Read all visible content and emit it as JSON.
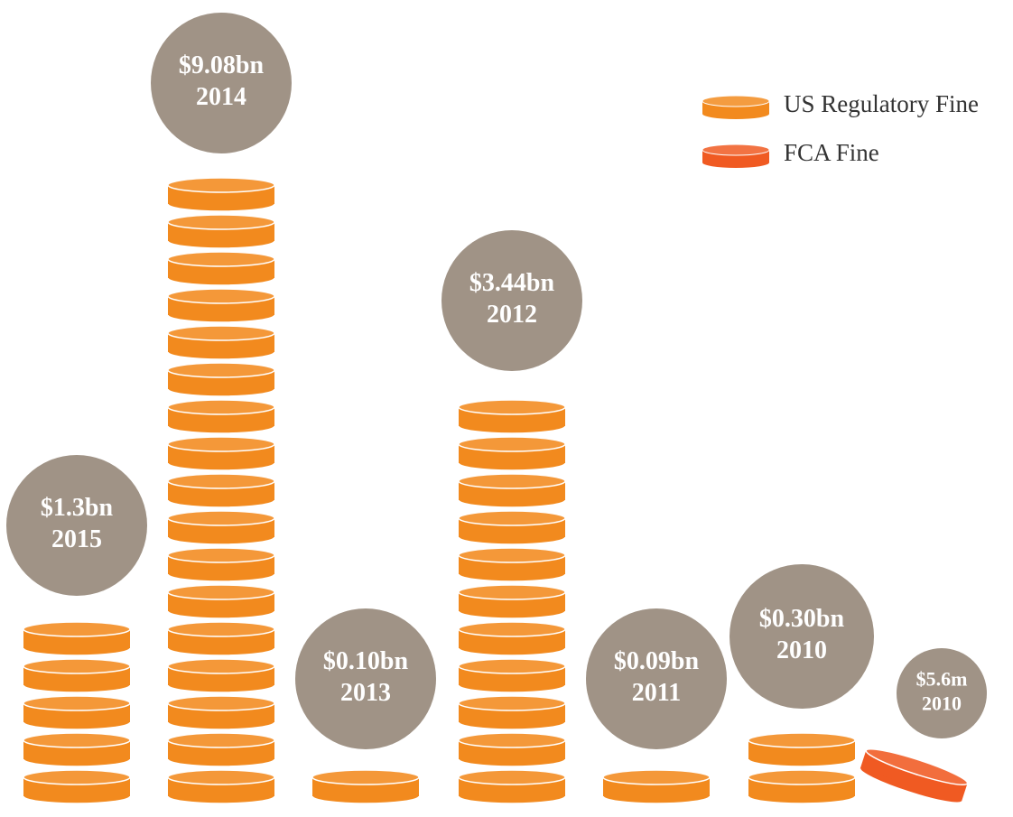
{
  "chart_data": {
    "type": "coin-stack",
    "categories": [
      "2015",
      "2014",
      "2013",
      "2012",
      "2011",
      "2010",
      "2010"
    ],
    "series": [
      {
        "name": "US Regulatory Fine",
        "color": "#f28a1e",
        "values": [
          1.3,
          9.08,
          0.1,
          3.44,
          0.09,
          0.3,
          null
        ],
        "value_labels": [
          "$1.3bn",
          "$9.08bn",
          "$0.10bn",
          "$3.44bn",
          "$0.09bn",
          "$0.30bn",
          null
        ],
        "coins": [
          5,
          17,
          1,
          11,
          1,
          2,
          null
        ]
      },
      {
        "name": "FCA Fine",
        "color": "#f05a22",
        "values": [
          null,
          null,
          null,
          null,
          null,
          null,
          0.0056
        ],
        "value_labels": [
          null,
          null,
          null,
          null,
          null,
          null,
          "$5.6m"
        ],
        "coins": [
          null,
          null,
          null,
          null,
          null,
          null,
          1
        ]
      }
    ]
  }
}
